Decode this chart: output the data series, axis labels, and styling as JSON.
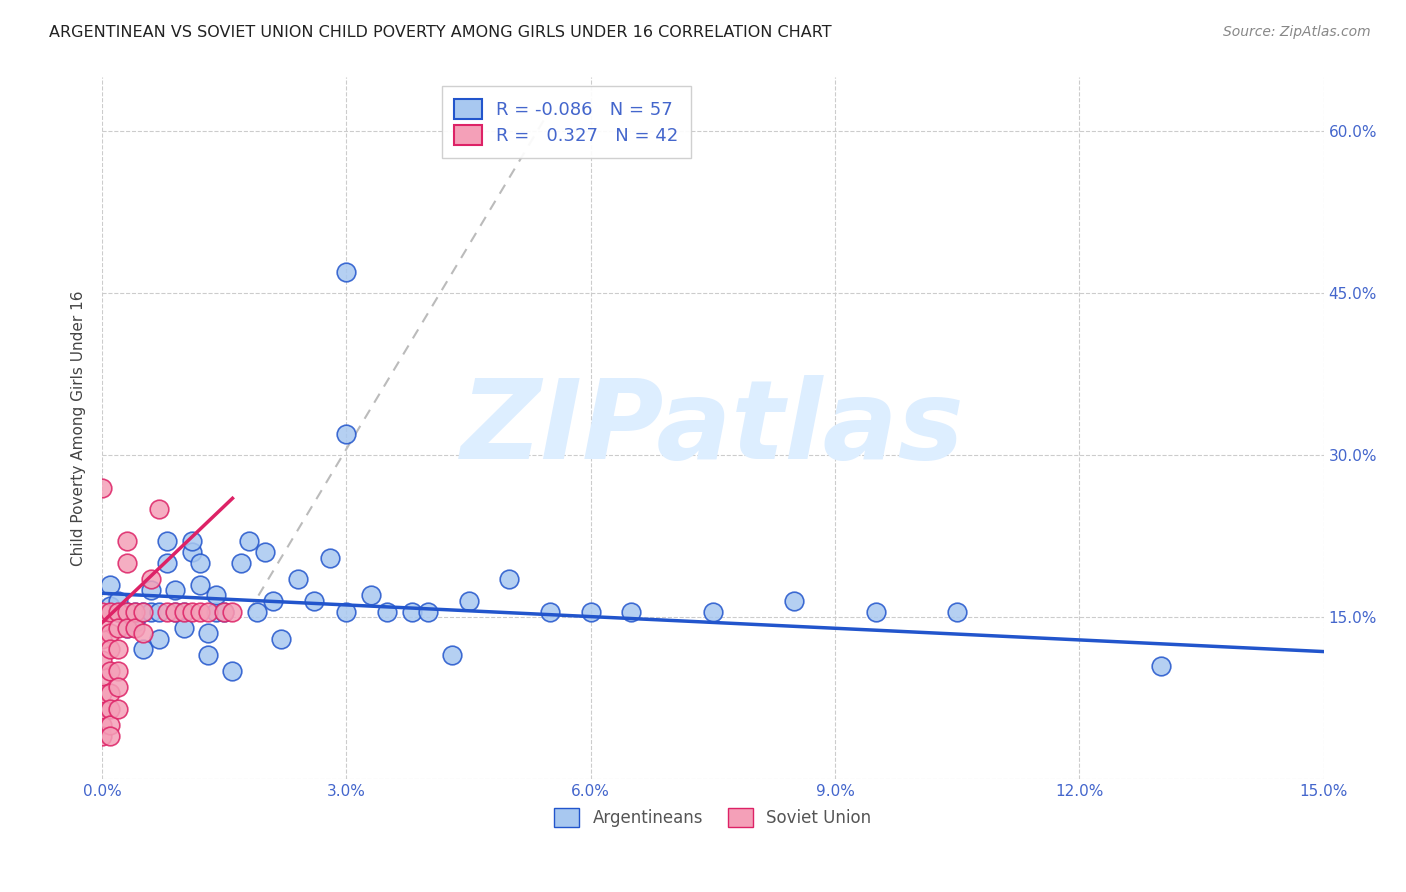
{
  "title": "ARGENTINEAN VS SOVIET UNION CHILD POVERTY AMONG GIRLS UNDER 16 CORRELATION CHART",
  "source": "Source: ZipAtlas.com",
  "ylabel": "Child Poverty Among Girls Under 16",
  "legend_labels": [
    "Argentineans",
    "Soviet Union"
  ],
  "R_argentinean": -0.086,
  "N_argentinean": 57,
  "R_soviet": 0.327,
  "N_soviet": 42,
  "xlim": [
    0.0,
    0.15
  ],
  "ylim": [
    0.0,
    0.65
  ],
  "xticks": [
    0.0,
    0.03,
    0.06,
    0.09,
    0.12,
    0.15
  ],
  "yticks": [
    0.0,
    0.15,
    0.3,
    0.45,
    0.6
  ],
  "color_argentinean": "#a8c8f0",
  "color_soviet": "#f4a0b8",
  "color_line_argentinean": "#2255cc",
  "color_line_soviet": "#dd2266",
  "color_dashed_line": "#bbbbbb",
  "color_grid": "#cccccc",
  "color_title": "#222222",
  "color_source": "#888888",
  "color_axis_labels": "#4466cc",
  "watermark_text": "ZIPatlas",
  "watermark_color": "#ddeeff",
  "background_color": "#ffffff",
  "arg_x": [
    0.001,
    0.001,
    0.002,
    0.002,
    0.003,
    0.003,
    0.004,
    0.004,
    0.005,
    0.005,
    0.006,
    0.006,
    0.007,
    0.007,
    0.008,
    0.008,
    0.009,
    0.009,
    0.01,
    0.01,
    0.011,
    0.011,
    0.012,
    0.012,
    0.013,
    0.013,
    0.014,
    0.014,
    0.015,
    0.016,
    0.017,
    0.018,
    0.019,
    0.02,
    0.021,
    0.022,
    0.024,
    0.026,
    0.028,
    0.03,
    0.033,
    0.035,
    0.038,
    0.04,
    0.043,
    0.045,
    0.05,
    0.055,
    0.06,
    0.065,
    0.075,
    0.085,
    0.095,
    0.105,
    0.13,
    0.03,
    0.03
  ],
  "arg_y": [
    0.18,
    0.16,
    0.155,
    0.165,
    0.155,
    0.14,
    0.145,
    0.155,
    0.155,
    0.12,
    0.155,
    0.175,
    0.155,
    0.13,
    0.2,
    0.22,
    0.155,
    0.175,
    0.155,
    0.14,
    0.21,
    0.22,
    0.18,
    0.2,
    0.135,
    0.115,
    0.155,
    0.17,
    0.155,
    0.1,
    0.2,
    0.22,
    0.155,
    0.21,
    0.165,
    0.13,
    0.185,
    0.165,
    0.205,
    0.155,
    0.17,
    0.155,
    0.155,
    0.155,
    0.115,
    0.165,
    0.185,
    0.155,
    0.155,
    0.155,
    0.155,
    0.165,
    0.155,
    0.155,
    0.105,
    0.47,
    0.32
  ],
  "sov_x": [
    0.0,
    0.0,
    0.0,
    0.0,
    0.0,
    0.0,
    0.0,
    0.0,
    0.0,
    0.0,
    0.001,
    0.001,
    0.001,
    0.001,
    0.001,
    0.001,
    0.001,
    0.001,
    0.002,
    0.002,
    0.002,
    0.002,
    0.002,
    0.002,
    0.003,
    0.003,
    0.003,
    0.003,
    0.004,
    0.004,
    0.005,
    0.005,
    0.006,
    0.007,
    0.008,
    0.009,
    0.01,
    0.011,
    0.012,
    0.013,
    0.015,
    0.016
  ],
  "sov_y": [
    0.05,
    0.065,
    0.08,
    0.095,
    0.11,
    0.13,
    0.145,
    0.155,
    0.27,
    0.04,
    0.155,
    0.135,
    0.12,
    0.1,
    0.08,
    0.065,
    0.05,
    0.04,
    0.155,
    0.14,
    0.12,
    0.1,
    0.085,
    0.065,
    0.155,
    0.14,
    0.2,
    0.22,
    0.155,
    0.14,
    0.155,
    0.135,
    0.185,
    0.25,
    0.155,
    0.155,
    0.155,
    0.155,
    0.155,
    0.155,
    0.155,
    0.155
  ],
  "arg_line_x": [
    0.0,
    0.15
  ],
  "arg_line_y": [
    0.172,
    0.118
  ],
  "sov_line_x": [
    0.0,
    0.016
  ],
  "sov_line_y": [
    0.145,
    0.26
  ],
  "diag_line_x": [
    0.018,
    0.055
  ],
  "diag_line_y": [
    0.155,
    0.62
  ]
}
